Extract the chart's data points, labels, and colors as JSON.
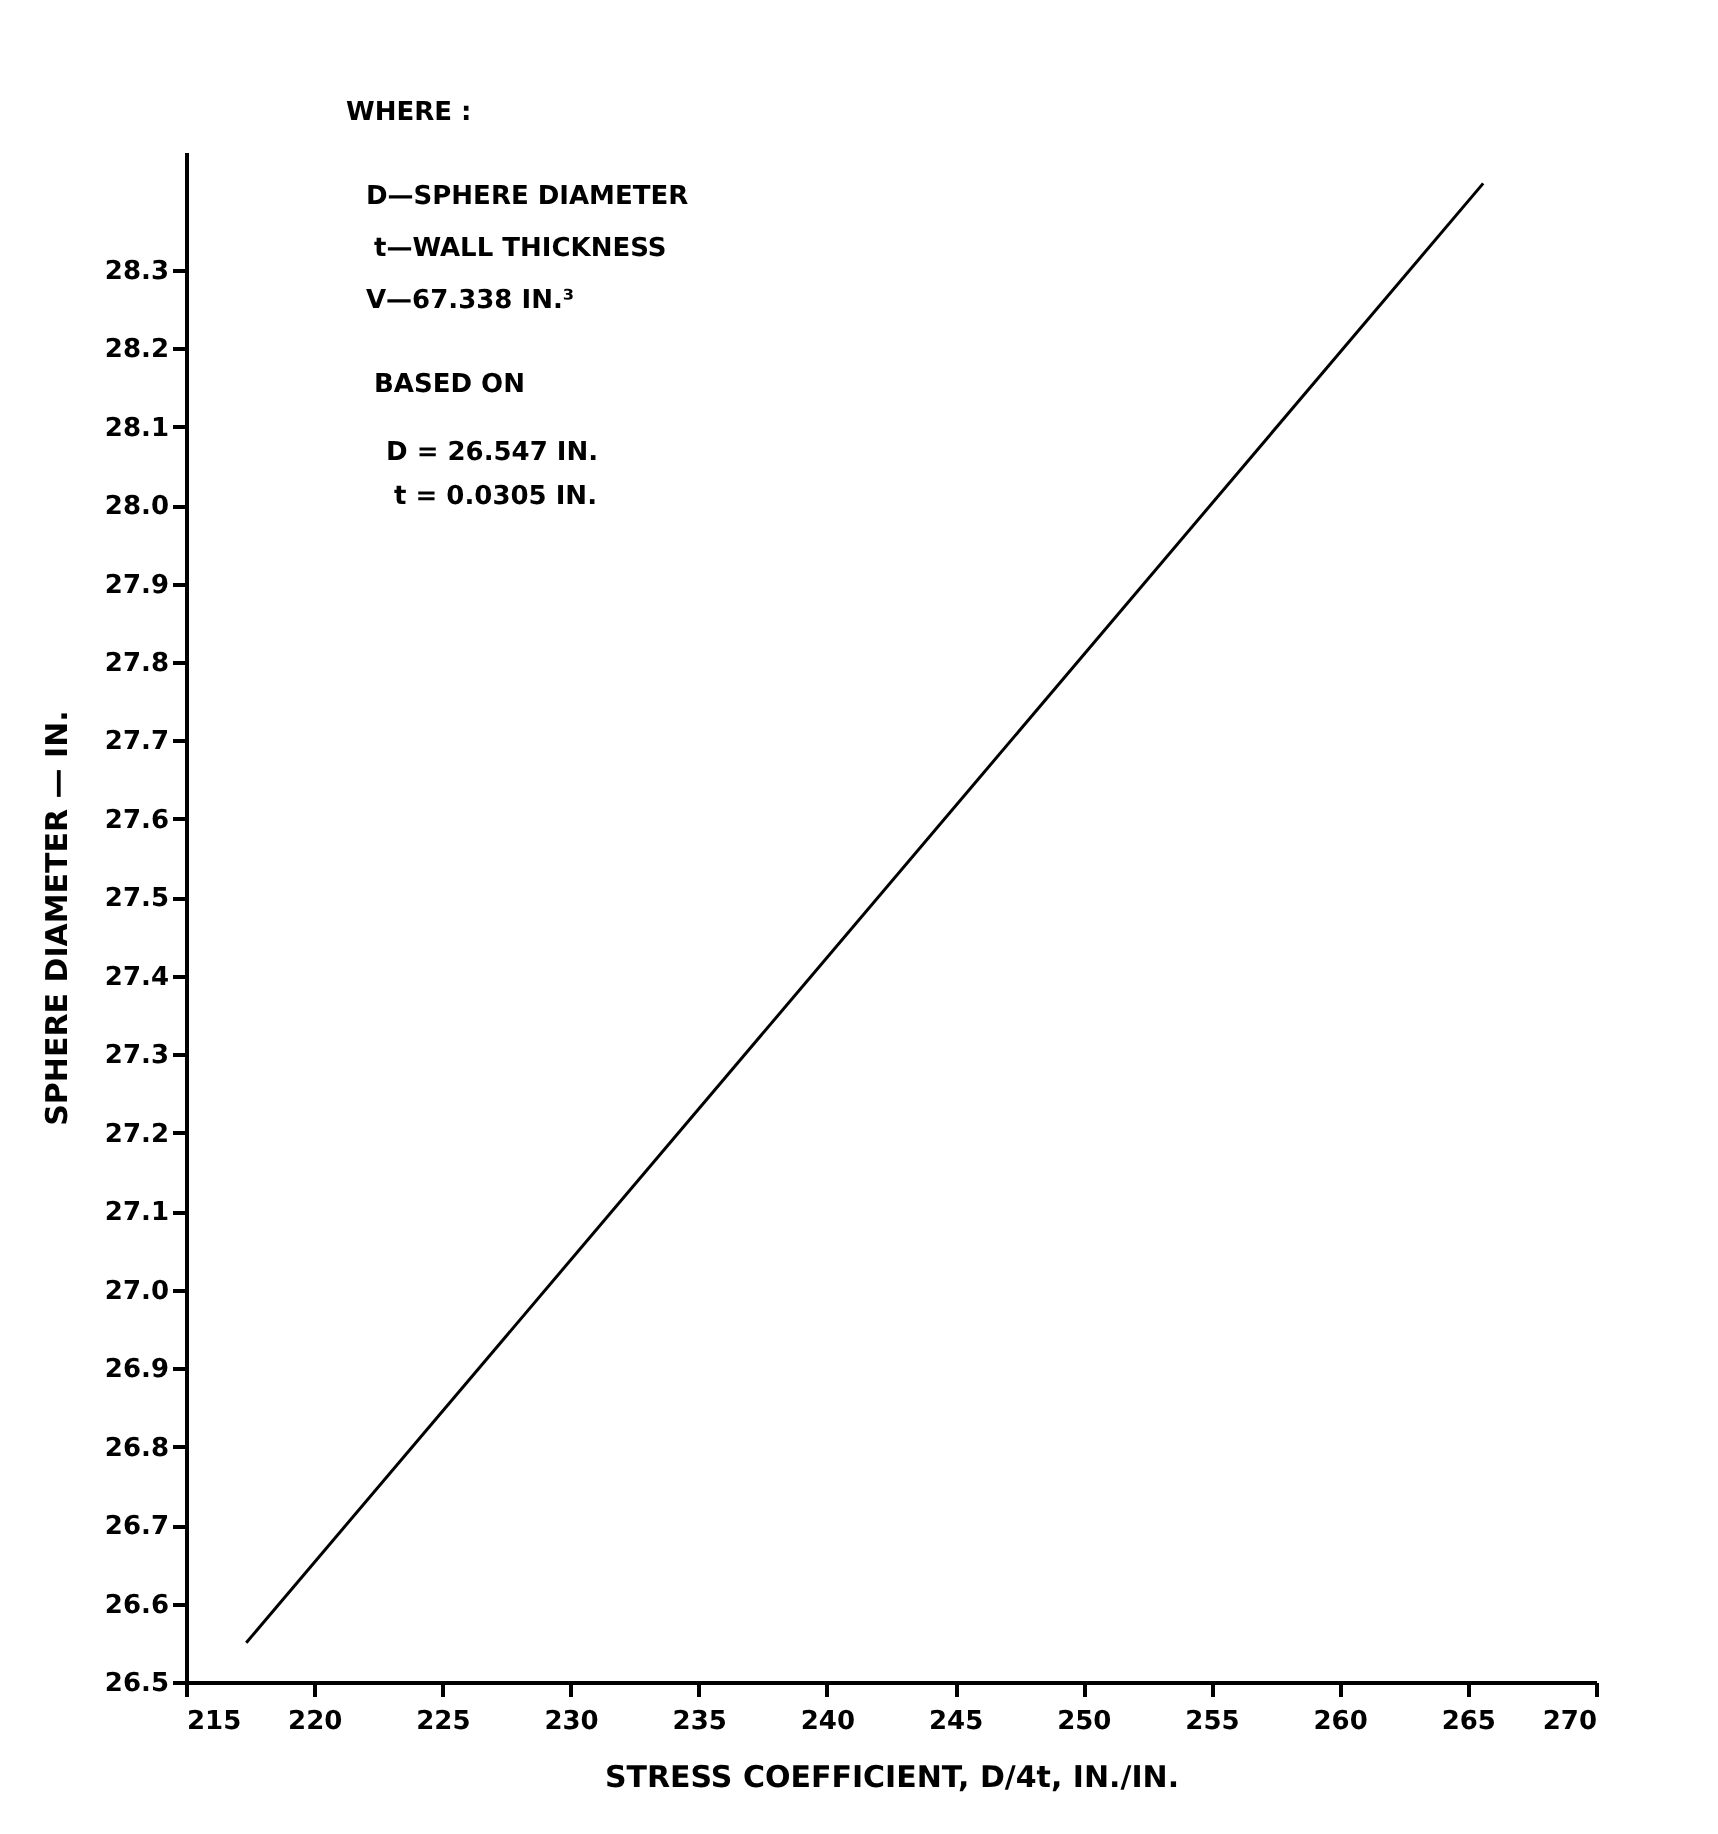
{
  "chart_data": {
    "type": "line",
    "xlabel": "STRESS COEFFICIENT, D/4t, IN./IN.",
    "ylabel": "SPHERE DIAMETER — IN.",
    "x": [
      217.35,
      265.6
    ],
    "series": [
      {
        "color": "#000000",
        "values": [
          26.55,
          28.41
        ]
      }
    ],
    "xlim": [
      215,
      270
    ],
    "xticks": [
      215,
      220,
      225,
      230,
      235,
      240,
      245,
      250,
      255,
      260,
      265,
      270
    ],
    "ylim": [
      26.5,
      28.45
    ],
    "yticks": [
      26.5,
      26.6,
      26.7,
      26.8,
      26.9,
      {
        "value": 27,
        "label": "27.0"
      },
      27.1,
      27.2,
      27.3,
      27.4,
      27.5,
      27.6,
      27.7,
      27.8,
      27.9,
      {
        "value": 28,
        "label": "28.0"
      },
      28.1,
      28.2,
      28.3
    ],
    "grid": false,
    "marker": "none",
    "line_style": "solid",
    "annotations": [
      "WHERE :",
      "D—SPHERE DIAMETER",
      "t—WALL THICKNESS",
      "V—67.338 IN.³",
      "BASED ON",
      "D = 26.547 IN.",
      "t = 0.0305 IN."
    ]
  }
}
